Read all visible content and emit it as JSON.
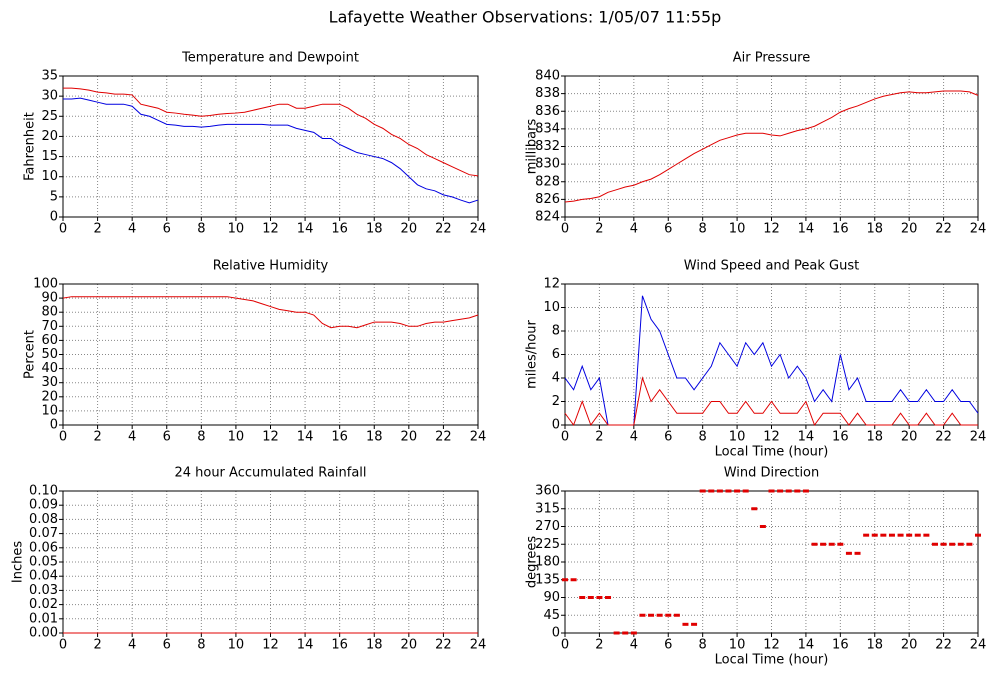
{
  "title": "Lafayette Weather Observations: 1/05/07 11:55p",
  "chart_data": [
    {
      "type": "line",
      "title": "Temperature and Dewpoint",
      "ylabel": "Fahrenheit",
      "x": [
        0,
        0.5,
        1,
        1.5,
        2,
        2.5,
        3,
        3.5,
        4,
        4.5,
        5,
        5.5,
        6,
        6.5,
        7,
        7.5,
        8,
        8.5,
        9,
        9.5,
        10,
        10.5,
        11,
        11.5,
        12,
        12.5,
        13,
        13.5,
        14,
        14.5,
        15,
        15.5,
        16,
        16.5,
        17,
        17.5,
        18,
        18.5,
        19,
        19.5,
        20,
        20.5,
        21,
        21.5,
        22,
        22.5,
        23,
        23.5,
        24
      ],
      "series": [
        {
          "color": "#e00000",
          "values": [
            32,
            32,
            31.8,
            31.5,
            31,
            30.8,
            30.5,
            30.5,
            30.3,
            28,
            27.5,
            27,
            26,
            25.8,
            25.5,
            25.3,
            25,
            25.2,
            25.5,
            25.7,
            25.8,
            26,
            26.5,
            27,
            27.5,
            28,
            28,
            27,
            27,
            27.5,
            28,
            28,
            28,
            27,
            25.5,
            24.5,
            23,
            22,
            20.5,
            19.5,
            18,
            17,
            15.5,
            14.5,
            13.5,
            12.5,
            11.5,
            10.5,
            10.2
          ]
        },
        {
          "color": "#0000e0",
          "values": [
            29.3,
            29.3,
            29.5,
            29,
            28.5,
            28,
            28,
            28,
            27.5,
            25.5,
            25,
            24,
            23,
            22.8,
            22.5,
            22.5,
            22.3,
            22.5,
            22.8,
            23,
            23,
            23,
            23,
            23,
            22.8,
            22.8,
            22.8,
            22,
            21.5,
            21,
            19.5,
            19.5,
            18,
            17,
            16,
            15.5,
            15,
            14.5,
            13.5,
            12,
            10,
            8,
            7,
            6.5,
            5.5,
            5,
            4.2,
            3.5,
            4.2
          ]
        }
      ],
      "xlim": [
        0,
        24
      ],
      "xticks": [
        0,
        2,
        4,
        6,
        8,
        10,
        12,
        14,
        16,
        18,
        20,
        22,
        24
      ],
      "ylim": [
        0,
        35
      ],
      "yticks": [
        0,
        5,
        10,
        15,
        20,
        25,
        30,
        35
      ],
      "grid": true
    },
    {
      "type": "line",
      "title": "Air Pressure",
      "ylabel": "millibars",
      "x": [
        0,
        0.5,
        1,
        1.5,
        2,
        2.5,
        3,
        3.5,
        4,
        4.5,
        5,
        5.5,
        6,
        6.5,
        7,
        7.5,
        8,
        8.5,
        9,
        9.5,
        10,
        10.5,
        11,
        11.5,
        12,
        12.5,
        13,
        13.5,
        14,
        14.5,
        15,
        15.5,
        16,
        16.5,
        17,
        17.5,
        18,
        18.5,
        19,
        19.5,
        20,
        20.5,
        21,
        21.5,
        22,
        22.5,
        23,
        23.5,
        24
      ],
      "series": [
        {
          "color": "#e00000",
          "values": [
            825.7,
            825.8,
            826,
            826.1,
            826.3,
            826.8,
            827.1,
            827.4,
            827.6,
            828,
            828.3,
            828.8,
            829.4,
            830,
            830.6,
            831.2,
            831.7,
            832.2,
            832.7,
            833,
            833.3,
            833.5,
            833.5,
            833.5,
            833.3,
            833.2,
            833.5,
            833.8,
            834,
            834.3,
            834.8,
            835.3,
            835.9,
            836.3,
            836.6,
            837,
            837.4,
            837.7,
            837.9,
            838.1,
            838.2,
            838.1,
            838.1,
            838.2,
            838.3,
            838.3,
            838.3,
            838.2,
            837.8
          ]
        }
      ],
      "xlim": [
        0,
        24
      ],
      "xticks": [
        0,
        2,
        4,
        6,
        8,
        10,
        12,
        14,
        16,
        18,
        20,
        22,
        24
      ],
      "ylim": [
        824,
        840
      ],
      "yticks": [
        824,
        826,
        828,
        830,
        832,
        834,
        836,
        838,
        840
      ],
      "grid": true
    },
    {
      "type": "line",
      "title": "Relative Humidity",
      "ylabel": "Percent",
      "x": [
        0,
        0.5,
        1,
        1.5,
        2,
        2.5,
        3,
        3.5,
        4,
        4.5,
        5,
        5.5,
        6,
        6.5,
        7,
        7.5,
        8,
        8.5,
        9,
        9.5,
        10,
        10.5,
        11,
        11.5,
        12,
        12.5,
        13,
        13.5,
        14,
        14.5,
        15,
        15.5,
        16,
        16.5,
        17,
        17.5,
        18,
        18.5,
        19,
        19.5,
        20,
        20.5,
        21,
        21.5,
        22,
        22.5,
        23,
        23.5,
        24
      ],
      "series": [
        {
          "color": "#e00000",
          "values": [
            90,
            91,
            91,
            91,
            91,
            91,
            91,
            91,
            91,
            91,
            91,
            91,
            91,
            91,
            91,
            91,
            91,
            91,
            91,
            91,
            90,
            89,
            88,
            86,
            84,
            82,
            81,
            80,
            80,
            78,
            72,
            69,
            70,
            70,
            69,
            71,
            73,
            73,
            73,
            72,
            70,
            70,
            72,
            73,
            73,
            74,
            75,
            76,
            78
          ]
        }
      ],
      "xlim": [
        0,
        24
      ],
      "xticks": [
        0,
        2,
        4,
        6,
        8,
        10,
        12,
        14,
        16,
        18,
        20,
        22,
        24
      ],
      "ylim": [
        0,
        100
      ],
      "yticks": [
        0,
        10,
        20,
        30,
        40,
        50,
        60,
        70,
        80,
        90,
        100
      ],
      "grid": true
    },
    {
      "type": "line",
      "title": "Wind Speed and Peak Gust",
      "ylabel": "miles/hour",
      "xlabel": "Local Time (hour)",
      "x": [
        0,
        0.5,
        1,
        1.5,
        2,
        2.5,
        3,
        3.5,
        4,
        4.5,
        5,
        5.5,
        6,
        6.5,
        7,
        7.5,
        8,
        8.5,
        9,
        9.5,
        10,
        10.5,
        11,
        11.5,
        12,
        12.5,
        13,
        13.5,
        14,
        14.5,
        15,
        15.5,
        16,
        16.5,
        17,
        17.5,
        18,
        18.5,
        19,
        19.5,
        20,
        20.5,
        21,
        21.5,
        22,
        22.5,
        23,
        23.5,
        24
      ],
      "series": [
        {
          "color": "#0000e0",
          "values": [
            4,
            3,
            5,
            3,
            4,
            0,
            0,
            0,
            0,
            11,
            9,
            8,
            6,
            4,
            4,
            3,
            4,
            5,
            7,
            6,
            5,
            7,
            6,
            7,
            5,
            6,
            4,
            5,
            4,
            2,
            3,
            2,
            6,
            3,
            4,
            2,
            2,
            2,
            2,
            3,
            2,
            2,
            3,
            2,
            2,
            3,
            2,
            2,
            1
          ]
        },
        {
          "color": "#e00000",
          "values": [
            1,
            0,
            2,
            0,
            1,
            0,
            0,
            0,
            0,
            4,
            2,
            3,
            2,
            1,
            1,
            1,
            1,
            2,
            2,
            1,
            1,
            2,
            1,
            1,
            2,
            1,
            1,
            1,
            2,
            0,
            1,
            1,
            1,
            0,
            1,
            0,
            0,
            0,
            0,
            1,
            0,
            0,
            1,
            0,
            0,
            1,
            0,
            0,
            0
          ]
        }
      ],
      "xlim": [
        0,
        24
      ],
      "xticks": [
        0,
        2,
        4,
        6,
        8,
        10,
        12,
        14,
        16,
        18,
        20,
        22,
        24
      ],
      "ylim": [
        0,
        12
      ],
      "yticks": [
        0,
        2,
        4,
        6,
        8,
        10,
        12
      ],
      "grid": true
    },
    {
      "type": "line",
      "title": "24 hour Accumulated Rainfall",
      "ylabel": "Inches",
      "x": [
        0,
        24
      ],
      "series": [
        {
          "color": "#e00000",
          "values": [
            0,
            0
          ]
        }
      ],
      "xlim": [
        0,
        24
      ],
      "xticks": [
        0,
        2,
        4,
        6,
        8,
        10,
        12,
        14,
        16,
        18,
        20,
        22,
        24
      ],
      "ylim": [
        0,
        0.1
      ],
      "yticks": [
        {
          "value": 0,
          "label": "0.00"
        },
        {
          "value": 0.01,
          "label": "0.01"
        },
        {
          "value": 0.02,
          "label": "0.02"
        },
        {
          "value": 0.03,
          "label": "0.03"
        },
        {
          "value": 0.04,
          "label": "0.04"
        },
        {
          "value": 0.05,
          "label": "0.05"
        },
        {
          "value": 0.06,
          "label": "0.06"
        },
        {
          "value": 0.07,
          "label": "0.07"
        },
        {
          "value": 0.08,
          "label": "0.08"
        },
        {
          "value": 0.09,
          "label": "0.09"
        },
        {
          "value": 0.1,
          "label": "0.10"
        }
      ],
      "grid": true
    },
    {
      "type": "scatter",
      "title": "Wind Direction",
      "ylabel": "degrees",
      "xlabel": "Local Time (hour)",
      "x": [
        0,
        0.5,
        1,
        1.5,
        2,
        2.5,
        3,
        3.5,
        4,
        4.5,
        5,
        5.5,
        6,
        6.5,
        7,
        7.5,
        8,
        8.5,
        9,
        9.5,
        10,
        10.5,
        11,
        11.5,
        12,
        12.5,
        13,
        13.5,
        14,
        14.5,
        15,
        15.5,
        16,
        16.5,
        17,
        17.5,
        18,
        18.5,
        19,
        19.5,
        20,
        20.5,
        21,
        21.5,
        22,
        22.5,
        23,
        23.5,
        24
      ],
      "series": [
        {
          "color": "#e00000",
          "values": [
            135,
            135,
            90,
            90,
            90,
            90,
            0,
            0,
            0,
            45,
            45,
            45,
            45,
            45,
            22,
            22,
            360,
            360,
            360,
            360,
            360,
            360,
            315,
            270,
            360,
            360,
            360,
            360,
            360,
            225,
            225,
            225,
            225,
            202,
            202,
            248,
            248,
            248,
            248,
            248,
            248,
            248,
            248,
            225,
            225,
            225,
            225,
            225,
            248
          ]
        }
      ],
      "xlim": [
        0,
        24
      ],
      "xticks": [
        0,
        2,
        4,
        6,
        8,
        10,
        12,
        14,
        16,
        18,
        20,
        22,
        24
      ],
      "ylim": [
        0,
        360
      ],
      "yticks": [
        0,
        45,
        90,
        135,
        180,
        225,
        270,
        315,
        360
      ],
      "grid": true
    }
  ]
}
